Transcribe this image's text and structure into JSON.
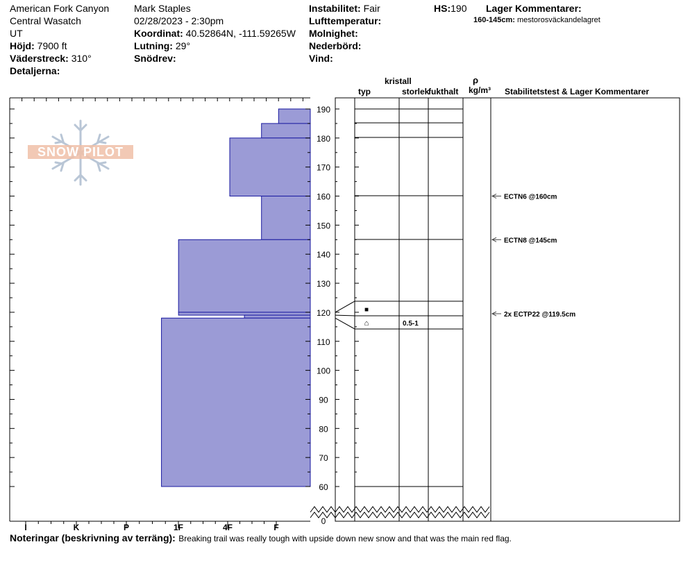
{
  "header": {
    "location": "American Fork Canyon",
    "range": "Central Wasatch",
    "state": "UT",
    "elevation_label": "Höjd:",
    "elevation_value": "7900 ft",
    "aspect_label": "Väderstreck:",
    "aspect_value": "310°",
    "details_label": "Detaljerna:",
    "observer": "Mark Staples",
    "datetime": "02/28/2023 - 2:30pm",
    "coord_label": "Koordinat:",
    "coord_value": "40.52864N, -111.59265W",
    "slope_label": "Lutning:",
    "slope_value": "29°",
    "drift_label": "Snödrev:",
    "stability_label": "Instabilitet:",
    "stability_value": "Fair",
    "airtemp_label": "Lufttemperatur:",
    "sky_label": "Molnighet:",
    "precip_label": "Nederbörd:",
    "wind_label": "Vind:",
    "hs_label": "HS:",
    "hs_value": "190",
    "layer_comments_label": "Lager Kommentarer:",
    "layer_comment_range": "160-145cm:",
    "layer_comment_text": "mestorosväckandelagret"
  },
  "logo_text": "SNOW PILOT",
  "columns": {
    "crystal": "kristall",
    "type": "typ",
    "size": "storlek",
    "moisture": "fukthalt",
    "rho": "ρ",
    "density_unit": "kg/m³",
    "stability": "Stabilitetstest & Lager Kommentarer"
  },
  "notes": {
    "label": "Noteringar (beskrivning av terräng):",
    "text": "Breaking trail was really tough with upside down new snow and that was the main red flag."
  },
  "colors": {
    "hardness_fill": "#9b9bd6",
    "hardness_stroke": "#1a1aa0"
  },
  "chart_data": {
    "type": "snow_profile",
    "y_axis": {
      "ticks": [
        0,
        60,
        70,
        80,
        90,
        100,
        110,
        120,
        130,
        140,
        150,
        160,
        170,
        180,
        190
      ],
      "visible_range": [
        60,
        190
      ],
      "break_below": 60
    },
    "hardness_scale": [
      "I",
      "K",
      "P",
      "1F",
      "4F",
      "F"
    ],
    "hardness_layers": [
      {
        "top": 190,
        "bottom": 185,
        "hardness": 0.65
      },
      {
        "top": 185,
        "bottom": 180,
        "hardness": 1.0
      },
      {
        "top": 180,
        "bottom": 160,
        "hardness": 1.65
      },
      {
        "top": 160,
        "bottom": 145,
        "hardness": 1.0
      },
      {
        "top": 145,
        "bottom": 120,
        "hardness": 2.7
      },
      {
        "top": 120,
        "bottom": 119,
        "hardness": 2.7
      },
      {
        "top": 119,
        "bottom": 118,
        "hardness": 1.35
      },
      {
        "top": 118,
        "bottom": 60,
        "hardness": 3.05
      }
    ],
    "layer_boundaries": [
      190,
      185,
      180,
      160,
      145,
      120,
      119,
      118,
      60
    ],
    "crystal_rows": [
      {
        "symbol": "■",
        "size": ""
      },
      {
        "symbol": "⌂",
        "size": "0.5-1"
      }
    ],
    "stability_tests": [
      {
        "depth": 160,
        "label": "ECTN6 @160cm"
      },
      {
        "depth": 145,
        "label": "ECTN8 @145cm"
      },
      {
        "depth": 119.5,
        "label": "2x ECTP22 @119.5cm"
      }
    ]
  }
}
